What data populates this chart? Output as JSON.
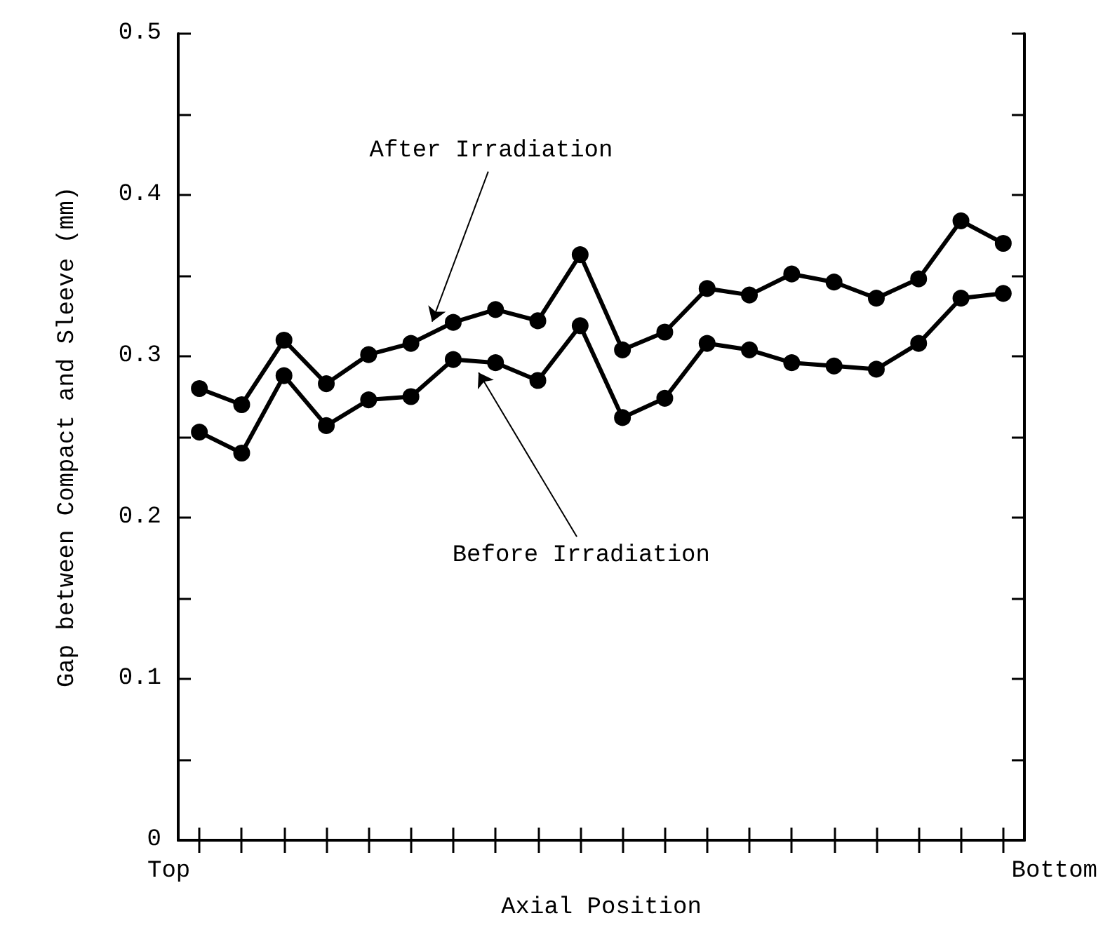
{
  "chart_data": {
    "type": "line",
    "xlabel": "Axial Position",
    "ylabel": "Gap between Compact and Sleeve (mm)",
    "categories": [
      null,
      null,
      null,
      null,
      null,
      null,
      null,
      null,
      null,
      null,
      null,
      null,
      null,
      null,
      null,
      null,
      null,
      null,
      null,
      null
    ],
    "series": [
      {
        "name": "After Irradiation",
        "color": "#000000",
        "values": [
          0.28,
          0.27,
          0.31,
          0.283,
          0.301,
          0.308,
          0.321,
          0.329,
          0.322,
          0.363,
          0.304,
          0.315,
          0.342,
          0.338,
          0.351,
          0.346,
          0.336,
          0.348,
          0.384,
          0.37
        ]
      },
      {
        "name": "Before Irradiation",
        "color": "#000000",
        "values": [
          0.253,
          0.24,
          0.288,
          0.257,
          0.273,
          0.275,
          0.298,
          0.296,
          0.285,
          0.319,
          0.262,
          0.274,
          0.308,
          0.304,
          0.296,
          0.294,
          0.292,
          0.308,
          0.336,
          0.339
        ]
      }
    ],
    "annotations": [
      "Top",
      "Bottom"
    ],
    "ylim": [
      0,
      0.5
    ],
    "yticks": [
      0,
      {
        "value": 0.05,
        "label": null
      },
      0.1,
      {
        "value": 0.15,
        "label": null
      },
      0.2,
      {
        "value": 0.25,
        "label": null
      },
      0.3,
      {
        "value": 0.35,
        "label": null
      },
      0.4,
      {
        "value": 0.45,
        "label": null
      },
      0.5
    ],
    "grid": false,
    "legend": false,
    "marker": "circle",
    "line_style": "solid"
  }
}
